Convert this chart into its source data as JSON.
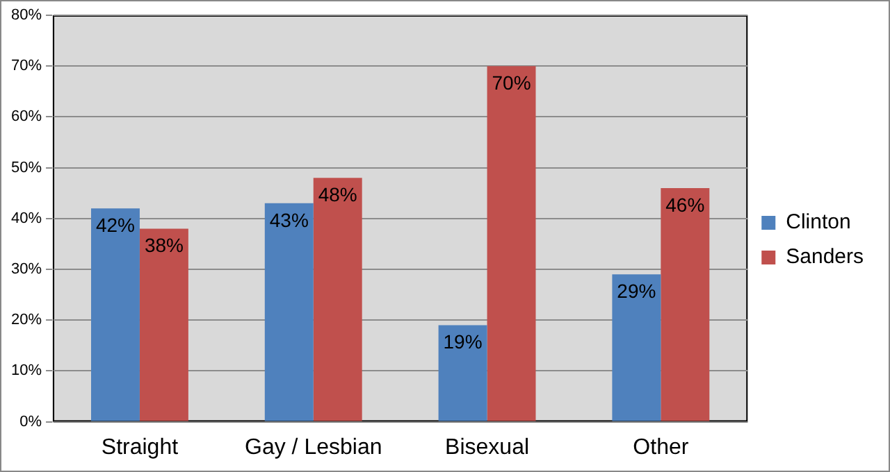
{
  "chart_data": {
    "type": "bar",
    "categories": [
      "Straight",
      "Gay / Lesbian",
      "Bisexual",
      "Other"
    ],
    "series": [
      {
        "name": "Clinton",
        "color": "#4f81bd",
        "values": [
          42,
          43,
          19,
          29
        ],
        "value_labels": [
          "42%",
          "43%",
          "19%",
          "29%"
        ]
      },
      {
        "name": "Sanders",
        "color": "#c0504d",
        "values": [
          38,
          48,
          70,
          46
        ],
        "value_labels": [
          "38%",
          "48%",
          "70%",
          "46%"
        ]
      }
    ],
    "ylim": [
      0,
      80
    ],
    "yticks": [
      {
        "value": 0,
        "label": "0%"
      },
      {
        "value": 10,
        "label": "10%"
      },
      {
        "value": 20,
        "label": "20%"
      },
      {
        "value": 30,
        "label": "30%"
      },
      {
        "value": 40,
        "label": "40%"
      },
      {
        "value": 50,
        "label": "50%"
      },
      {
        "value": 60,
        "label": "60%"
      },
      {
        "value": 70,
        "label": "70%"
      },
      {
        "value": 80,
        "label": "80%"
      }
    ],
    "grid": "y",
    "legend": "right"
  }
}
